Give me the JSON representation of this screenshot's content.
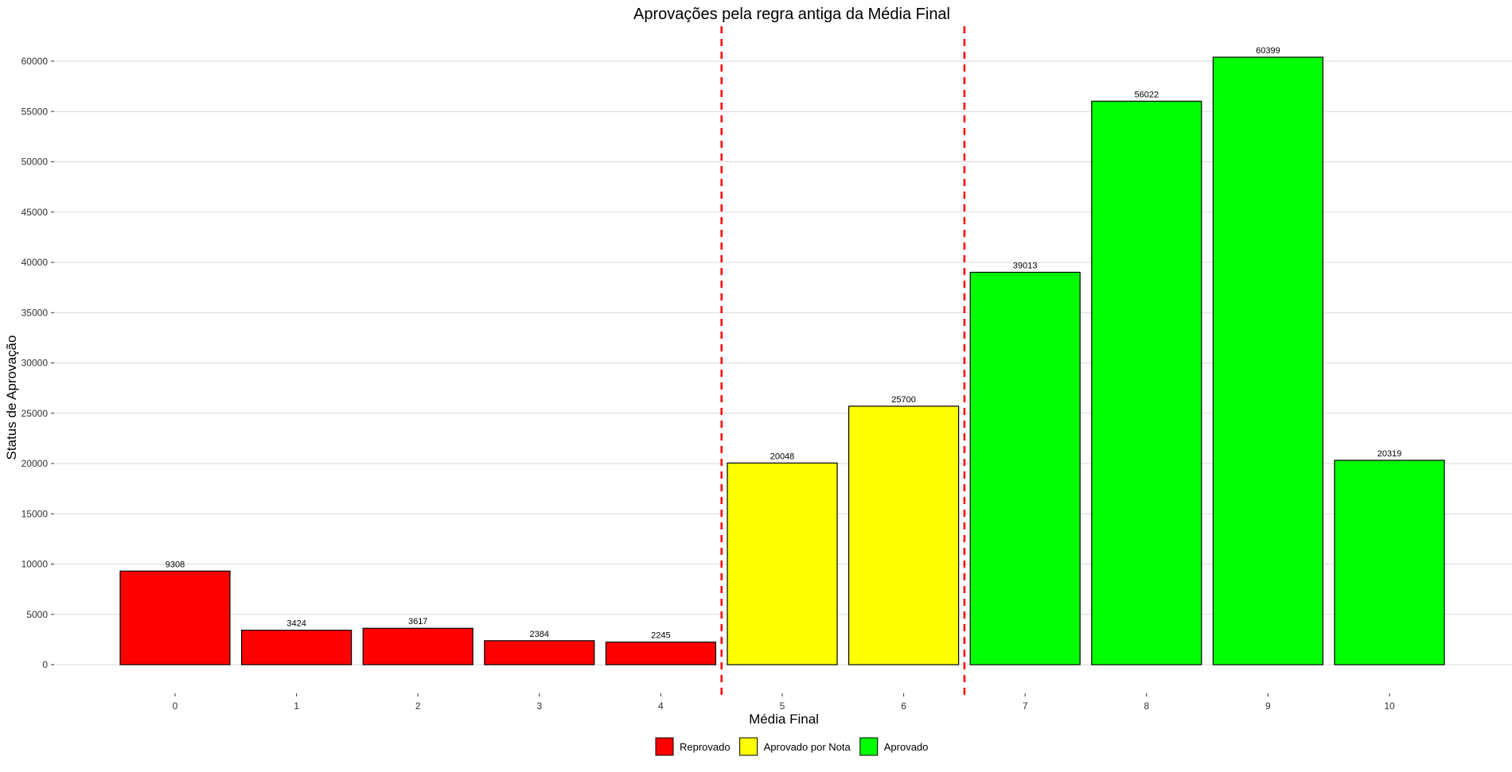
{
  "chart_data": {
    "type": "bar",
    "title": "Aprovações pela regra antiga da Média Final",
    "xlabel": "Média Final",
    "ylabel": "Status de Aprovação",
    "categories": [
      "0",
      "1",
      "2",
      "3",
      "4",
      "5",
      "6",
      "7",
      "8",
      "9",
      "10"
    ],
    "values": [
      9308,
      3424,
      3617,
      2384,
      2245,
      20048,
      25700,
      39013,
      56022,
      60399,
      20319
    ],
    "groups": [
      "Reprovado",
      "Reprovado",
      "Reprovado",
      "Reprovado",
      "Reprovado",
      "Aprovado por Nota",
      "Aprovado por Nota",
      "Aprovado",
      "Aprovado",
      "Aprovado",
      "Aprovado"
    ],
    "ylim": [
      0,
      62000
    ],
    "yticks": [
      0,
      5000,
      10000,
      15000,
      20000,
      25000,
      30000,
      35000,
      40000,
      45000,
      50000,
      55000,
      60000
    ],
    "reference_lines_x": [
      4.5,
      6.5
    ],
    "reference_line_color": "#ff0000",
    "grid": true,
    "legend": {
      "placement": "bottom",
      "entries": [
        {
          "label": "Reprovado",
          "color": "#ff0000"
        },
        {
          "label": "Aprovado por Nota",
          "color": "#ffff00"
        },
        {
          "label": "Aprovado",
          "color": "#00ff00"
        }
      ]
    }
  }
}
